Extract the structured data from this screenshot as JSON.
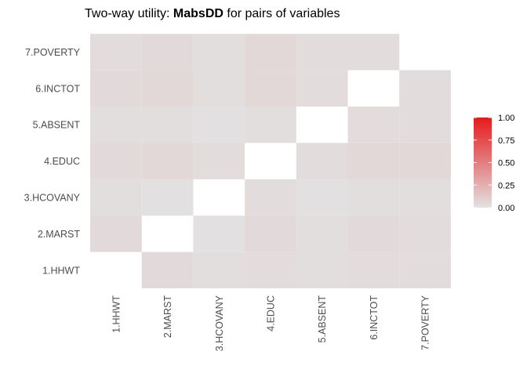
{
  "chart_data": {
    "type": "heatmap",
    "title_prefix": "Two-way utility: ",
    "title_bold": "MabsDD",
    "title_suffix": " for pairs of variables",
    "xlabel": "",
    "ylabel": "",
    "x_categories": [
      "1.HHWT",
      "2.MARST",
      "3.HCOVANY",
      "4.EDUC",
      "5.ABSENT",
      "6.INCTOT",
      "7.POVERTY"
    ],
    "y_categories": [
      "1.HHWT",
      "2.MARST",
      "3.HCOVANY",
      "4.EDUC",
      "5.ABSENT",
      "6.INCTOT",
      "7.POVERTY"
    ],
    "color_scale": {
      "low": "#e2e2e2",
      "high": "#e41a1c",
      "limits": [
        0,
        1
      ]
    },
    "legend": {
      "position": "right",
      "ticks": [
        "0.00",
        "0.25",
        "0.50",
        "0.75",
        "1.00"
      ],
      "tick_values": [
        0,
        0.25,
        0.5,
        0.75,
        1
      ]
    },
    "cells": [
      {
        "x": "2.MARST",
        "y": "1.HHWT",
        "value": 0.04
      },
      {
        "x": "3.HCOVANY",
        "y": "1.HHWT",
        "value": 0.02
      },
      {
        "x": "4.EDUC",
        "y": "1.HHWT",
        "value": 0.03
      },
      {
        "x": "5.ABSENT",
        "y": "1.HHWT",
        "value": 0.02
      },
      {
        "x": "6.INCTOT",
        "y": "1.HHWT",
        "value": 0.03
      },
      {
        "x": "7.POVERTY",
        "y": "1.HHWT",
        "value": 0.03
      },
      {
        "x": "1.HHWT",
        "y": "2.MARST",
        "value": 0.04
      },
      {
        "x": "3.HCOVANY",
        "y": "2.MARST",
        "value": 0.01
      },
      {
        "x": "4.EDUC",
        "y": "2.MARST",
        "value": 0.04
      },
      {
        "x": "5.ABSENT",
        "y": "2.MARST",
        "value": 0.02
      },
      {
        "x": "6.INCTOT",
        "y": "2.MARST",
        "value": 0.04
      },
      {
        "x": "7.POVERTY",
        "y": "2.MARST",
        "value": 0.03
      },
      {
        "x": "1.HHWT",
        "y": "3.HCOVANY",
        "value": 0.02
      },
      {
        "x": "2.MARST",
        "y": "3.HCOVANY",
        "value": 0.01
      },
      {
        "x": "4.EDUC",
        "y": "3.HCOVANY",
        "value": 0.03
      },
      {
        "x": "5.ABSENT",
        "y": "3.HCOVANY",
        "value": 0.01
      },
      {
        "x": "6.INCTOT",
        "y": "3.HCOVANY",
        "value": 0.02
      },
      {
        "x": "7.POVERTY",
        "y": "3.HCOVANY",
        "value": 0.02
      },
      {
        "x": "1.HHWT",
        "y": "4.EDUC",
        "value": 0.04
      },
      {
        "x": "2.MARST",
        "y": "4.EDUC",
        "value": 0.05
      },
      {
        "x": "3.HCOVANY",
        "y": "4.EDUC",
        "value": 0.03
      },
      {
        "x": "5.ABSENT",
        "y": "4.EDUC",
        "value": 0.03
      },
      {
        "x": "6.INCTOT",
        "y": "4.EDUC",
        "value": 0.05
      },
      {
        "x": "7.POVERTY",
        "y": "4.EDUC",
        "value": 0.05
      },
      {
        "x": "1.HHWT",
        "y": "5.ABSENT",
        "value": 0.02
      },
      {
        "x": "2.MARST",
        "y": "5.ABSENT",
        "value": 0.02
      },
      {
        "x": "3.HCOVANY",
        "y": "5.ABSENT",
        "value": 0.01
      },
      {
        "x": "4.EDUC",
        "y": "5.ABSENT",
        "value": 0.02
      },
      {
        "x": "6.INCTOT",
        "y": "5.ABSENT",
        "value": 0.03
      },
      {
        "x": "7.POVERTY",
        "y": "5.ABSENT",
        "value": 0.03
      },
      {
        "x": "1.HHWT",
        "y": "6.INCTOT",
        "value": 0.04
      },
      {
        "x": "2.MARST",
        "y": "6.INCTOT",
        "value": 0.05
      },
      {
        "x": "3.HCOVANY",
        "y": "6.INCTOT",
        "value": 0.02
      },
      {
        "x": "4.EDUC",
        "y": "6.INCTOT",
        "value": 0.05
      },
      {
        "x": "5.ABSENT",
        "y": "6.INCTOT",
        "value": 0.03
      },
      {
        "x": "7.POVERTY",
        "y": "6.INCTOT",
        "value": 0.03
      },
      {
        "x": "1.HHWT",
        "y": "7.POVERTY",
        "value": 0.03
      },
      {
        "x": "2.MARST",
        "y": "7.POVERTY",
        "value": 0.04
      },
      {
        "x": "3.HCOVANY",
        "y": "7.POVERTY",
        "value": 0.02
      },
      {
        "x": "4.EDUC",
        "y": "7.POVERTY",
        "value": 0.05
      },
      {
        "x": "5.ABSENT",
        "y": "7.POVERTY",
        "value": 0.03
      },
      {
        "x": "6.INCTOT",
        "y": "7.POVERTY",
        "value": 0.03
      }
    ],
    "grid": false
  }
}
